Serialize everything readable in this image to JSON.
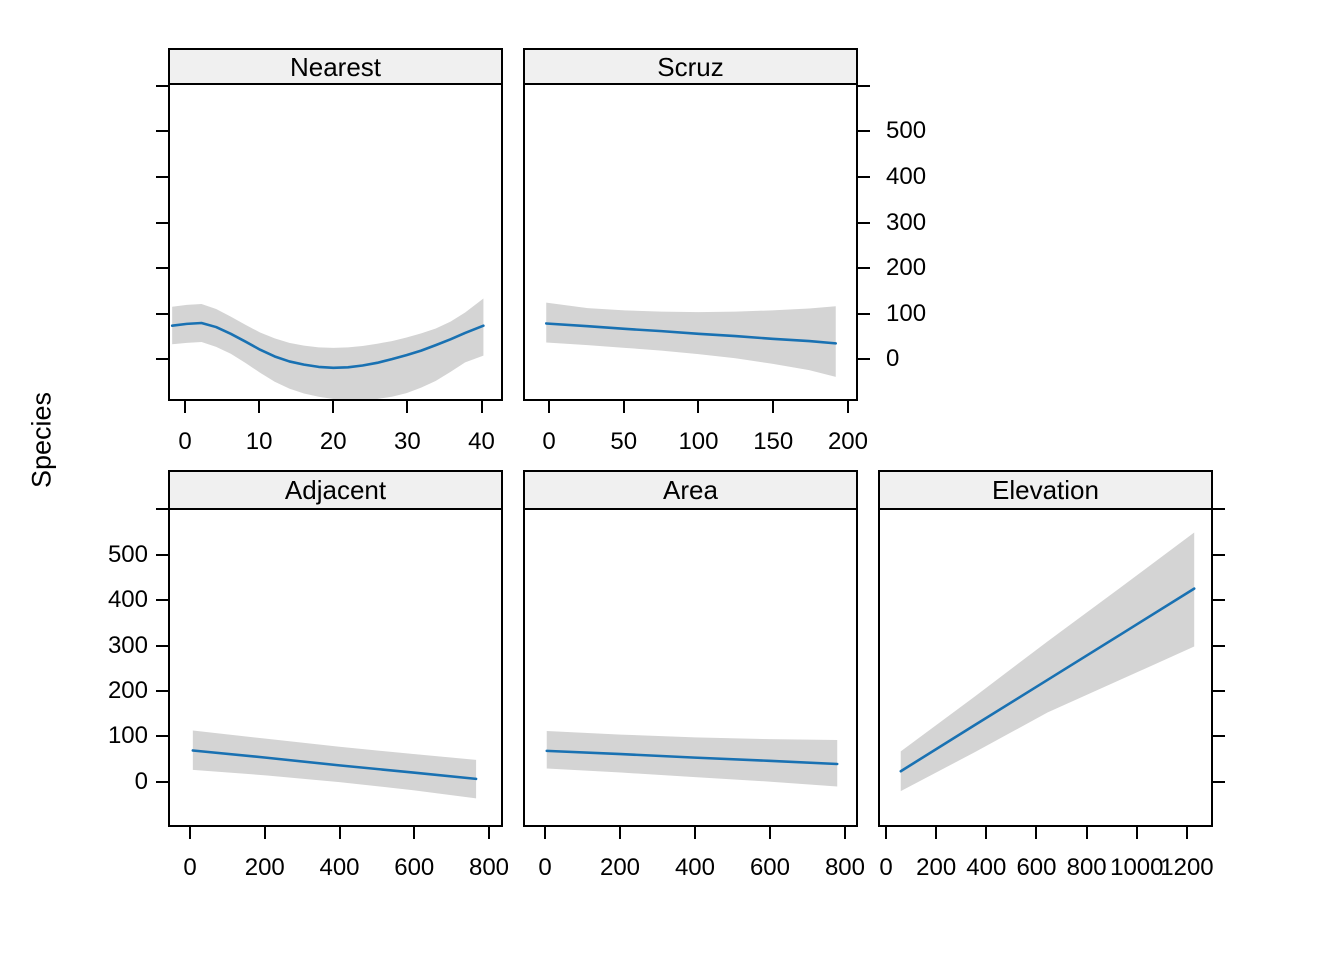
{
  "figure": {
    "background": "#ffffff",
    "border_color": "#000000",
    "strip_background": "#f0f0f0",
    "line_color": "#1971b2",
    "band_color": "#d4d4d4",
    "text_color": "#000000"
  },
  "chart_data": {
    "type": "line",
    "title": "",
    "ylabel": "Species",
    "legend": "none",
    "grid": false,
    "y_axis": {
      "ticks": [
        0,
        100,
        200,
        300,
        400,
        500,
        600
      ],
      "labeled_ticks": [
        0,
        100,
        200,
        300,
        400,
        500
      ],
      "label_side_top_row": "right",
      "label_side_bottom_row": "left"
    },
    "panels": [
      {
        "key": "nearest",
        "label": "Nearest",
        "row": "top",
        "xlim": [
          -2.3,
          42.9
        ],
        "ylim": [
          -92,
          602
        ],
        "x_ticks": [
          0,
          10,
          20,
          30,
          40
        ],
        "curve": [
          [
            -2,
            70
          ],
          [
            0,
            74
          ],
          [
            2,
            76
          ],
          [
            4,
            67
          ],
          [
            6,
            52
          ],
          [
            8,
            35
          ],
          [
            10,
            17
          ],
          [
            12,
            2
          ],
          [
            14,
            -9
          ],
          [
            16,
            -16
          ],
          [
            18,
            -21
          ],
          [
            20,
            -23
          ],
          [
            22,
            -22
          ],
          [
            24,
            -18
          ],
          [
            26,
            -12
          ],
          [
            28,
            -4
          ],
          [
            30,
            5
          ],
          [
            32,
            15
          ],
          [
            34,
            27
          ],
          [
            36,
            40
          ],
          [
            38,
            54
          ],
          [
            40.5,
            70
          ]
        ],
        "upper": [
          [
            -2,
            112
          ],
          [
            0,
            116
          ],
          [
            2,
            118
          ],
          [
            4,
            107
          ],
          [
            6,
            90
          ],
          [
            8,
            72
          ],
          [
            10,
            55
          ],
          [
            12,
            42
          ],
          [
            14,
            32
          ],
          [
            16,
            26
          ],
          [
            18,
            22
          ],
          [
            20,
            21
          ],
          [
            22,
            22
          ],
          [
            24,
            25
          ],
          [
            26,
            30
          ],
          [
            28,
            36
          ],
          [
            30,
            44
          ],
          [
            32,
            53
          ],
          [
            34,
            64
          ],
          [
            36,
            79
          ],
          [
            38,
            99
          ],
          [
            40.5,
            130
          ]
        ],
        "lower": [
          [
            -2,
            29
          ],
          [
            0,
            32
          ],
          [
            2,
            34
          ],
          [
            4,
            23
          ],
          [
            6,
            8
          ],
          [
            8,
            -12
          ],
          [
            10,
            -34
          ],
          [
            12,
            -54
          ],
          [
            14,
            -69
          ],
          [
            16,
            -80
          ],
          [
            18,
            -87
          ],
          [
            20,
            -92
          ],
          [
            22,
            -94
          ],
          [
            24,
            -94
          ],
          [
            26,
            -92
          ],
          [
            28,
            -87
          ],
          [
            30,
            -79
          ],
          [
            32,
            -67
          ],
          [
            34,
            -52
          ],
          [
            36,
            -32
          ],
          [
            38,
            -11
          ],
          [
            40.5,
            4
          ]
        ]
      },
      {
        "key": "scruz",
        "label": "Scruz",
        "row": "top",
        "xlim": [
          -17.4,
          206.7
        ],
        "ylim": [
          -92,
          602
        ],
        "x_ticks": [
          0,
          50,
          100,
          150,
          200
        ],
        "curve": [
          [
            -3,
            75
          ],
          [
            25,
            69
          ],
          [
            50,
            63
          ],
          [
            75,
            58
          ],
          [
            100,
            52
          ],
          [
            125,
            47
          ],
          [
            150,
            41
          ],
          [
            175,
            36
          ],
          [
            193,
            31
          ]
        ],
        "upper": [
          [
            -3,
            121
          ],
          [
            25,
            109
          ],
          [
            50,
            104
          ],
          [
            75,
            101
          ],
          [
            100,
            100
          ],
          [
            125,
            101
          ],
          [
            150,
            104
          ],
          [
            175,
            108
          ],
          [
            193,
            113
          ]
        ],
        "lower": [
          [
            -3,
            33
          ],
          [
            25,
            27
          ],
          [
            50,
            21
          ],
          [
            75,
            15
          ],
          [
            100,
            7
          ],
          [
            125,
            -2
          ],
          [
            150,
            -14
          ],
          [
            175,
            -28
          ],
          [
            193,
            -43
          ]
        ]
      },
      {
        "key": "adjacent",
        "label": "Adjacent",
        "row": "bottom",
        "xlim": [
          -58.9,
          837.4
        ],
        "ylim": [
          -99,
          598
        ],
        "x_ticks": [
          0,
          200,
          400,
          600,
          800
        ],
        "curve": [
          [
            3,
            66
          ],
          [
            200,
            50
          ],
          [
            400,
            33
          ],
          [
            600,
            17
          ],
          [
            770,
            3
          ]
        ],
        "upper": [
          [
            3,
            110
          ],
          [
            200,
            92
          ],
          [
            400,
            74
          ],
          [
            600,
            58
          ],
          [
            770,
            45
          ]
        ],
        "lower": [
          [
            3,
            23
          ],
          [
            200,
            11
          ],
          [
            400,
            -4
          ],
          [
            600,
            -22
          ],
          [
            770,
            -40
          ]
        ]
      },
      {
        "key": "area",
        "label": "Area",
        "row": "bottom",
        "xlim": [
          -58.7,
          834.7
        ],
        "ylim": [
          -99,
          598
        ],
        "x_ticks": [
          0,
          200,
          400,
          600,
          800
        ],
        "curve": [
          [
            0,
            65
          ],
          [
            200,
            58
          ],
          [
            400,
            50
          ],
          [
            600,
            43
          ],
          [
            784,
            36
          ]
        ],
        "upper": [
          [
            0,
            109
          ],
          [
            200,
            101
          ],
          [
            400,
            95
          ],
          [
            600,
            91
          ],
          [
            784,
            89
          ]
        ],
        "lower": [
          [
            0,
            26
          ],
          [
            200,
            17
          ],
          [
            400,
            7
          ],
          [
            600,
            -3
          ],
          [
            784,
            -14
          ]
        ]
      },
      {
        "key": "elevation",
        "label": "Elevation",
        "row": "bottom",
        "xlim": [
          -31.9,
          1303.8
        ],
        "ylim": [
          -99,
          598
        ],
        "x_ticks": [
          0,
          200,
          400,
          600,
          800,
          1000,
          1200
        ],
        "curve": [
          [
            52,
            20
          ],
          [
            350,
            122
          ],
          [
            644,
            222
          ],
          [
            940,
            323
          ],
          [
            1236,
            424
          ]
        ],
        "upper": [
          [
            52,
            64
          ],
          [
            350,
            185
          ],
          [
            644,
            307
          ],
          [
            940,
            427
          ],
          [
            1236,
            548
          ]
        ],
        "lower": [
          [
            52,
            -24
          ],
          [
            350,
            62
          ],
          [
            644,
            150
          ],
          [
            940,
            223
          ],
          [
            1236,
            296
          ]
        ]
      }
    ]
  }
}
